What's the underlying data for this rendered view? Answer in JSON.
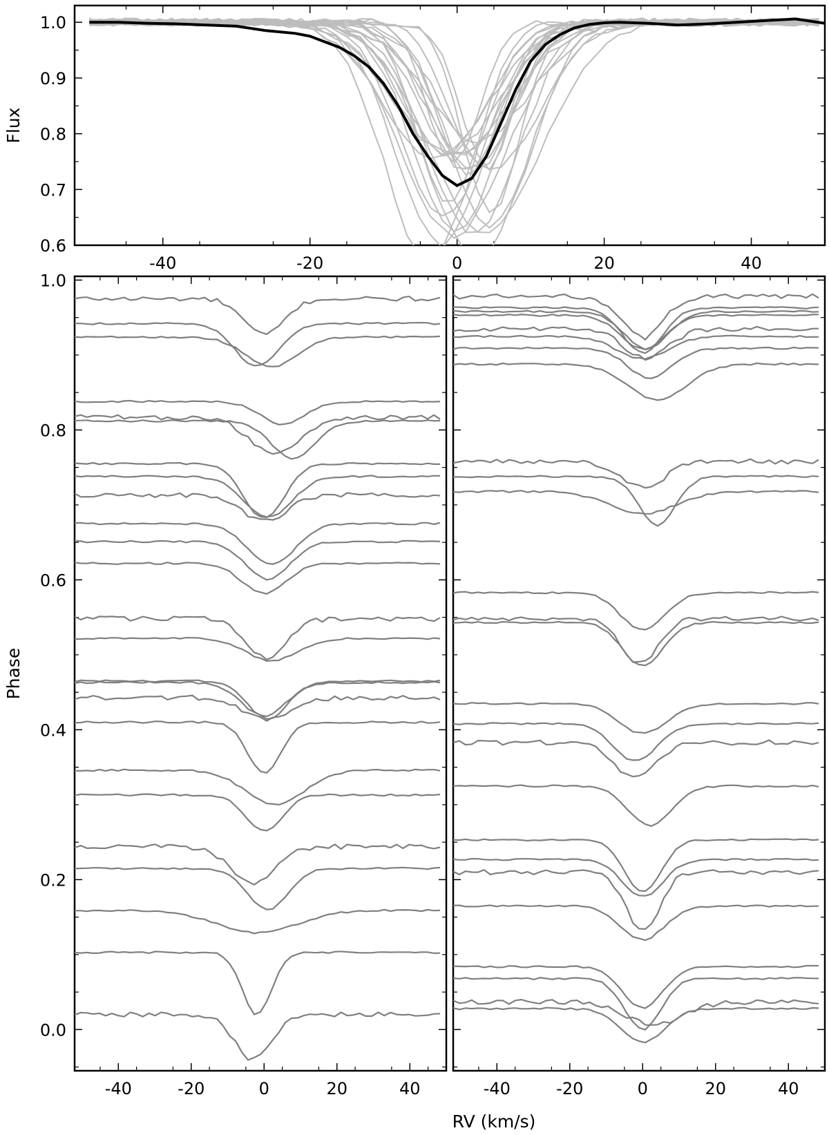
{
  "figure": {
    "xlabel": "RV (km/s)"
  },
  "chart_data": [
    {
      "panel": "top",
      "type": "line",
      "xlabel": "",
      "ylabel": "Flux",
      "xlim": [
        -52,
        50
      ],
      "ylim": [
        0.6,
        1.03
      ],
      "xticks": [
        -40,
        -20,
        0,
        20,
        40
      ],
      "xtick_labels": [
        "-40",
        "-20",
        "0",
        "20",
        "40"
      ],
      "yticks": [
        0.6,
        0.7,
        0.8,
        0.9,
        1.0
      ],
      "ytick_labels": [
        "0.6",
        "0.7",
        "0.8",
        "0.9",
        "1.0"
      ],
      "xtick_label_position": "bottom",
      "colors": {
        "mean": "#000000",
        "individual": "#bdbdbd"
      },
      "series": [
        {
          "role": "mean profile",
          "x": [
            -50,
            -46,
            -42,
            -38,
            -34,
            -30,
            -26,
            -22,
            -20,
            -18,
            -16,
            -14,
            -12,
            -10,
            -8,
            -6,
            -4,
            -2,
            0,
            2,
            4,
            6,
            8,
            10,
            12,
            14,
            16,
            18,
            20,
            22,
            26,
            30,
            34,
            38,
            42,
            46,
            50
          ],
          "y": [
            1.0,
            1.0,
            0.998,
            0.997,
            0.995,
            0.993,
            0.985,
            0.98,
            0.975,
            0.965,
            0.955,
            0.94,
            0.92,
            0.89,
            0.85,
            0.8,
            0.76,
            0.725,
            0.707,
            0.72,
            0.76,
            0.82,
            0.88,
            0.93,
            0.96,
            0.978,
            0.99,
            0.996,
            0.999,
            1.0,
            0.998,
            0.995,
            0.997,
            1.0,
            1.003,
            1.006,
            0.998
          ]
        },
        {
          "role": "individual profiles",
          "count": 24,
          "x_range": [
            -50,
            50
          ],
          "depth_range": [
            0.6,
            0.79
          ],
          "center_range": [
            -4,
            5
          ]
        }
      ]
    },
    {
      "panel": "bottom-left",
      "type": "line",
      "xlabel": "",
      "ylabel": "Phase",
      "xlim": [
        -52,
        50
      ],
      "ylim": [
        -0.055,
        1.005
      ],
      "xticks": [
        -40,
        -20,
        0,
        20,
        40
      ],
      "xtick_labels": [
        "-40",
        "-20",
        "0",
        "20",
        "40"
      ],
      "yticks": [
        0.0,
        0.2,
        0.4,
        0.6,
        0.8,
        1.0
      ],
      "ytick_labels": [
        "0.0",
        "0.2",
        "0.4",
        "0.6",
        "0.8",
        "1.0"
      ],
      "line_color": "#7f7f7f",
      "profiles": [
        {
          "baseline": 0.975,
          "center": 0.0,
          "depth": 0.048,
          "width": 5.5
        },
        {
          "baseline": 0.942,
          "center": -2.0,
          "depth": 0.057,
          "width": 6.0
        },
        {
          "baseline": 0.924,
          "center": 2.0,
          "depth": 0.04,
          "width": 7.0
        },
        {
          "baseline": 0.838,
          "center": 5.0,
          "depth": 0.03,
          "width": 6.0
        },
        {
          "baseline": 0.817,
          "center": 3.0,
          "depth": 0.05,
          "width": 7.0
        },
        {
          "baseline": 0.812,
          "center": 8.0,
          "depth": 0.05,
          "width": 6.0
        },
        {
          "baseline": 0.755,
          "center": 0.0,
          "depth": 0.073,
          "width": 5.5
        },
        {
          "baseline": 0.738,
          "center": 1.0,
          "depth": 0.055,
          "width": 6.5
        },
        {
          "baseline": 0.713,
          "center": 0.0,
          "depth": 0.035,
          "width": 6.0
        },
        {
          "baseline": 0.675,
          "center": 2.0,
          "depth": 0.055,
          "width": 6.5
        },
        {
          "baseline": 0.651,
          "center": 1.0,
          "depth": 0.05,
          "width": 6.0
        },
        {
          "baseline": 0.622,
          "center": 0.0,
          "depth": 0.04,
          "width": 6.0
        },
        {
          "baseline": 0.548,
          "center": 0.5,
          "depth": 0.052,
          "width": 5.5
        },
        {
          "baseline": 0.522,
          "center": 2.0,
          "depth": 0.03,
          "width": 7.0
        },
        {
          "baseline": 0.465,
          "center": 1.0,
          "depth": 0.05,
          "width": 5.5
        },
        {
          "baseline": 0.463,
          "center": 0.0,
          "depth": 0.045,
          "width": 6.0
        },
        {
          "baseline": 0.443,
          "center": 1.0,
          "depth": 0.03,
          "width": 6.5
        },
        {
          "baseline": 0.41,
          "center": 0.0,
          "depth": 0.068,
          "width": 4.5
        },
        {
          "baseline": 0.346,
          "center": 3.0,
          "depth": 0.046,
          "width": 8.0
        },
        {
          "baseline": 0.313,
          "center": 0.0,
          "depth": 0.048,
          "width": 5.0
        },
        {
          "baseline": 0.244,
          "center": -3.0,
          "depth": 0.05,
          "width": 6.0
        },
        {
          "baseline": 0.215,
          "center": 1.0,
          "depth": 0.055,
          "width": 5.5
        },
        {
          "baseline": 0.159,
          "center": -2.0,
          "depth": 0.03,
          "width": 11.0
        },
        {
          "baseline": 0.103,
          "center": -2.0,
          "depth": 0.083,
          "width": 4.0
        },
        {
          "baseline": 0.02,
          "center": -3.0,
          "depth": 0.06,
          "width": 5.0
        }
      ]
    },
    {
      "panel": "bottom-right",
      "type": "line",
      "xlabel": "",
      "ylabel": "",
      "xlim": [
        -52,
        50
      ],
      "ylim": [
        -0.055,
        1.005
      ],
      "xticks": [
        -40,
        -20,
        0,
        20,
        40
      ],
      "xtick_labels": [
        "-40",
        "-20",
        "0",
        "20",
        "40"
      ],
      "line_color": "#7f7f7f",
      "profiles": [
        {
          "baseline": 0.978,
          "center": 0.0,
          "depth": 0.055,
          "width": 5.5
        },
        {
          "baseline": 0.963,
          "center": 0.0,
          "depth": 0.06,
          "width": 5.5
        },
        {
          "baseline": 0.958,
          "center": 1.0,
          "depth": 0.05,
          "width": 6.0
        },
        {
          "baseline": 0.953,
          "center": 0.0,
          "depth": 0.045,
          "width": 6.0
        },
        {
          "baseline": 0.935,
          "center": 1.0,
          "depth": 0.04,
          "width": 6.0
        },
        {
          "baseline": 0.925,
          "center": 0.0,
          "depth": 0.03,
          "width": 7.0
        },
        {
          "baseline": 0.909,
          "center": 2.0,
          "depth": 0.04,
          "width": 6.0
        },
        {
          "baseline": 0.888,
          "center": 4.0,
          "depth": 0.048,
          "width": 8.0
        },
        {
          "baseline": 0.758,
          "center": 0.0,
          "depth": 0.035,
          "width": 6.0
        },
        {
          "baseline": 0.738,
          "center": 4.0,
          "depth": 0.065,
          "width": 5.0
        },
        {
          "baseline": 0.718,
          "center": 0.0,
          "depth": 0.03,
          "width": 9.0
        },
        {
          "baseline": 0.583,
          "center": 0.0,
          "depth": 0.05,
          "width": 6.0
        },
        {
          "baseline": 0.548,
          "center": -1.0,
          "depth": 0.06,
          "width": 5.0
        },
        {
          "baseline": 0.543,
          "center": 0.0,
          "depth": 0.058,
          "width": 5.5
        },
        {
          "baseline": 0.435,
          "center": 0.0,
          "depth": 0.04,
          "width": 6.5
        },
        {
          "baseline": 0.408,
          "center": -2.0,
          "depth": 0.05,
          "width": 6.0
        },
        {
          "baseline": 0.383,
          "center": -2.0,
          "depth": 0.048,
          "width": 5.5
        },
        {
          "baseline": 0.325,
          "center": 2.0,
          "depth": 0.053,
          "width": 6.0
        },
        {
          "baseline": 0.253,
          "center": 0.0,
          "depth": 0.07,
          "width": 5.0
        },
        {
          "baseline": 0.227,
          "center": 0.0,
          "depth": 0.05,
          "width": 5.5
        },
        {
          "baseline": 0.21,
          "center": 0.0,
          "depth": 0.08,
          "width": 4.5
        },
        {
          "baseline": 0.165,
          "center": 0.0,
          "depth": 0.045,
          "width": 6.0
        },
        {
          "baseline": 0.084,
          "center": 0.0,
          "depth": 0.055,
          "width": 5.5
        },
        {
          "baseline": 0.068,
          "center": 0.0,
          "depth": 0.068,
          "width": 5.0
        },
        {
          "baseline": 0.037,
          "center": 3.0,
          "depth": 0.03,
          "width": 8.0
        },
        {
          "baseline": 0.028,
          "center": 0.0,
          "depth": 0.045,
          "width": 6.0
        }
      ]
    }
  ]
}
